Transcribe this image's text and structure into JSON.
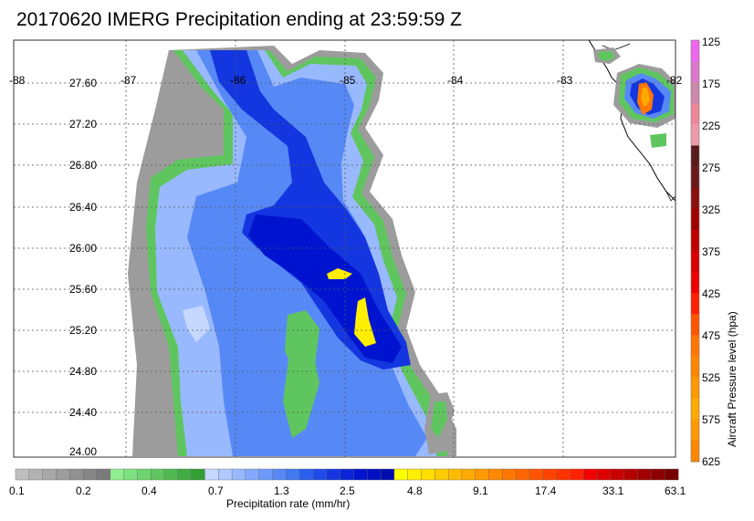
{
  "title": "20170620 IMERG Precipitation ending at 23:59:59 Z",
  "map": {
    "lon_labels": [
      "-88",
      "-87",
      "-86",
      "-85",
      "-84",
      "-83",
      "-82"
    ],
    "lat_labels": [
      "27.60",
      "27.20",
      "26.80",
      "26.40",
      "26.00",
      "25.60",
      "25.20",
      "24.80",
      "24.40",
      "24.00"
    ],
    "lon_range": [
      -88,
      -82
    ],
    "lat_range": [
      24.0,
      27.8
    ],
    "grid": true
  },
  "precip_scale": {
    "label": "Precipitation rate (mm/hr)",
    "tick_labels": [
      "0.1",
      "0.2",
      "0.4",
      "0.7",
      "1.3",
      "2.5",
      "4.8",
      "9.1",
      "17.4",
      "33.1",
      "63.1"
    ],
    "colors": [
      "#bfbfbf",
      "#b3b3b3",
      "#a8a8a8",
      "#9c9c9c",
      "#919191",
      "#858585",
      "#7a7a7a",
      "#90ee90",
      "#7fe07f",
      "#6fd36f",
      "#5fc65f",
      "#50b950",
      "#41ac41",
      "#339f33",
      "#c6d8ff",
      "#b0c9ff",
      "#99b9ff",
      "#83a9ff",
      "#6d99fb",
      "#5789f6",
      "#4179f1",
      "#2b5ff0",
      "#1f4be8",
      "#1436e0",
      "#0a25d7",
      "#0014cf",
      "#0010c0",
      "#000cb0",
      "#ffff00",
      "#ffee00",
      "#ffdd00",
      "#ffcc00",
      "#ffbb00",
      "#ffaa00",
      "#ff9900",
      "#ff8800",
      "#ff7700",
      "#ff6600",
      "#ff5500",
      "#ff4400",
      "#ff3300",
      "#ff2200",
      "#f00000",
      "#dd0000",
      "#c80000",
      "#b40000",
      "#a00000",
      "#8c0000",
      "#780000"
    ]
  },
  "pressure_scale": {
    "label": "Aircraft Pressure level (hpa)",
    "tick_labels": [
      "125",
      "175",
      "225",
      "275",
      "325",
      "375",
      "425",
      "475",
      "525",
      "575",
      "625"
    ],
    "colors": [
      "#ee66ee",
      "#dd77cc",
      "#cc88aa",
      "#ee8899",
      "#ee99aa",
      "#5a1a1a",
      "#6a1a1a",
      "#8a1010",
      "#a00000",
      "#c00000",
      "#d80000",
      "#ee0000",
      "#ff2200",
      "#ff5500",
      "#ff7700",
      "#ff8800",
      "#ff9900",
      "#ffaa00",
      "#ff9900",
      "#ff8800"
    ]
  }
}
